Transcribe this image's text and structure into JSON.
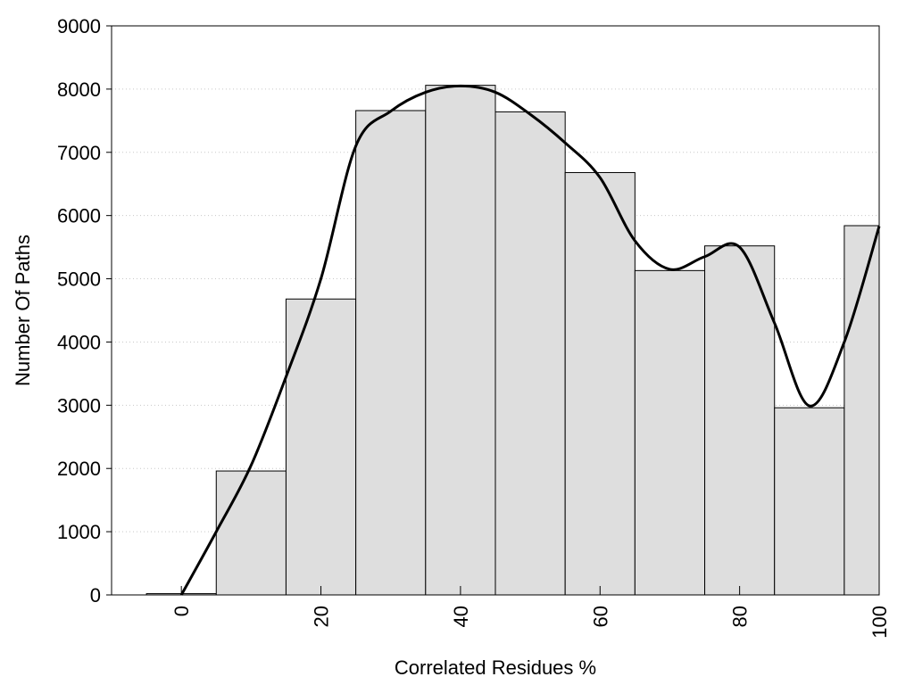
{
  "chart_data": {
    "type": "bar",
    "title": "",
    "xlabel": "Correlated Residues %",
    "ylabel": "Number Of Paths",
    "xlim": [
      -10,
      100
    ],
    "ylim": [
      0,
      9000
    ],
    "grid": "horizontal dotted",
    "x_ticks": [
      "0",
      "20",
      "40",
      "60",
      "80",
      "100"
    ],
    "x_tick_values": [
      0,
      20,
      40,
      60,
      80,
      100
    ],
    "y_ticks": [
      "0",
      "1000",
      "2000",
      "3000",
      "4000",
      "5000",
      "6000",
      "7000",
      "8000",
      "9000"
    ],
    "y_tick_values": [
      0,
      1000,
      2000,
      3000,
      4000,
      5000,
      6000,
      7000,
      8000,
      9000
    ],
    "bin_width": 10,
    "bins": [
      {
        "center": 0,
        "value": 20
      },
      {
        "center": 10,
        "value": 1960
      },
      {
        "center": 20,
        "value": 4680
      },
      {
        "center": 30,
        "value": 7660
      },
      {
        "center": 40,
        "value": 8060
      },
      {
        "center": 50,
        "value": 7640
      },
      {
        "center": 60,
        "value": 6680
      },
      {
        "center": 70,
        "value": 5130
      },
      {
        "center": 80,
        "value": 5520
      },
      {
        "center": 90,
        "value": 2960
      },
      {
        "center": 100,
        "value": 5840
      }
    ],
    "curve": {
      "x": [
        0,
        5,
        10,
        15,
        20,
        25,
        30,
        35,
        40,
        45,
        50,
        55,
        60,
        65,
        70,
        75,
        80,
        85,
        90,
        95,
        100
      ],
      "y": [
        0,
        1000,
        2050,
        3450,
        5000,
        7100,
        7650,
        7950,
        8050,
        7950,
        7600,
        7150,
        6600,
        5600,
        5150,
        5350,
        5500,
        4300,
        2990,
        4000,
        5830
      ]
    },
    "bar_color": "#dedede",
    "line_color": "#000000"
  }
}
